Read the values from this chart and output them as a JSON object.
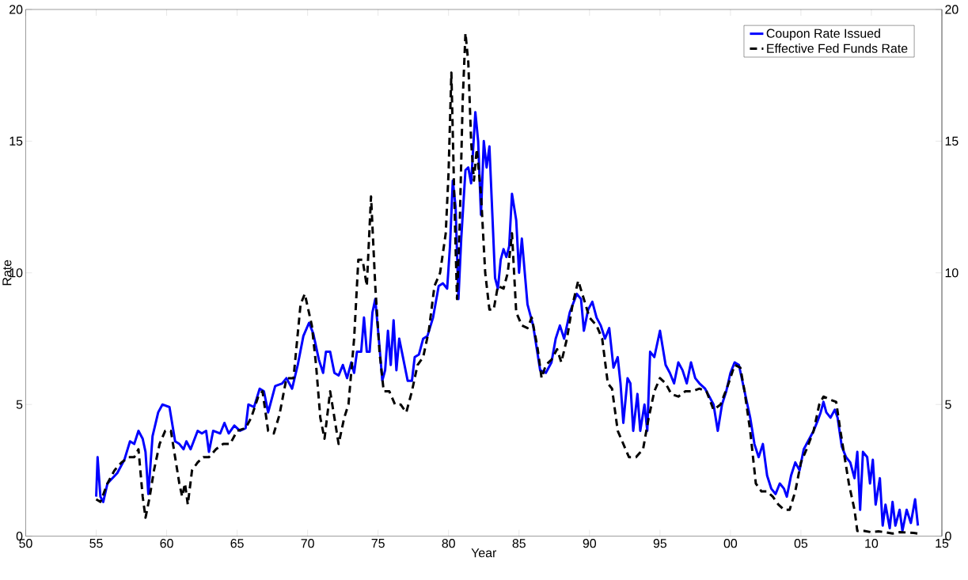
{
  "chart_data": {
    "type": "line",
    "xlabel": "Year",
    "ylabel": "Rate",
    "xlim": [
      1950,
      2015
    ],
    "ylim": [
      0,
      20
    ],
    "y2lim": [
      0,
      20
    ],
    "xticks": [
      {
        "value": 1950,
        "label": "50"
      },
      {
        "value": 1955,
        "label": "55"
      },
      {
        "value": 1960,
        "label": "60"
      },
      {
        "value": 1965,
        "label": "65"
      },
      {
        "value": 1970,
        "label": "70"
      },
      {
        "value": 1975,
        "label": "75"
      },
      {
        "value": 1980,
        "label": "80"
      },
      {
        "value": 1985,
        "label": "85"
      },
      {
        "value": 1990,
        "label": "90"
      },
      {
        "value": 1995,
        "label": "95"
      },
      {
        "value": 2000,
        "label": "00"
      },
      {
        "value": 2005,
        "label": "05"
      },
      {
        "value": 2010,
        "label": "10"
      },
      {
        "value": 2015,
        "label": "15"
      }
    ],
    "yticks": [
      0,
      5,
      10,
      15,
      20
    ],
    "y2ticks": [
      0,
      5,
      10,
      15,
      20
    ],
    "legend": "top right",
    "grid": false,
    "series": [
      {
        "name": "Coupon Rate Issued",
        "color": "#0000ff",
        "line_style": "solid",
        "x": [
          1955.0,
          1955.1,
          1955.3,
          1955.5,
          1955.8,
          1956.5,
          1957.0,
          1957.4,
          1957.7,
          1958.0,
          1958.3,
          1958.5,
          1958.7,
          1959.0,
          1959.4,
          1959.7,
          1960.2,
          1960.6,
          1960.9,
          1961.2,
          1961.4,
          1961.7,
          1962.2,
          1962.5,
          1962.8,
          1963.0,
          1963.3,
          1963.8,
          1964.1,
          1964.4,
          1964.8,
          1965.2,
          1965.6,
          1965.8,
          1966.2,
          1966.6,
          1966.9,
          1967.2,
          1967.7,
          1968.2,
          1968.5,
          1968.9,
          1969.3,
          1969.7,
          1970.1,
          1970.4,
          1970.8,
          1971.1,
          1971.3,
          1971.6,
          1971.9,
          1972.2,
          1972.5,
          1972.8,
          1973.1,
          1973.3,
          1973.5,
          1973.8,
          1974.0,
          1974.2,
          1974.4,
          1974.6,
          1974.8,
          1975.1,
          1975.3,
          1975.5,
          1975.7,
          1975.9,
          1976.1,
          1976.3,
          1976.5,
          1976.8,
          1977.1,
          1977.4,
          1977.6,
          1977.9,
          1978.2,
          1978.5,
          1978.9,
          1979.3,
          1979.6,
          1979.9,
          1980.1,
          1980.3,
          1980.5,
          1980.7,
          1980.9,
          1981.2,
          1981.4,
          1981.6,
          1981.9,
          1982.1,
          1982.3,
          1982.5,
          1982.7,
          1982.9,
          1983.1,
          1983.3,
          1983.5,
          1983.7,
          1983.9,
          1984.1,
          1984.3,
          1984.5,
          1984.8,
          1985.0,
          1985.2,
          1985.6,
          1986.0,
          1986.5,
          1986.9,
          1987.3,
          1987.6,
          1987.9,
          1988.2,
          1988.6,
          1989.1,
          1989.4,
          1989.6,
          1989.9,
          1990.2,
          1990.5,
          1990.8,
          1991.1,
          1991.4,
          1991.7,
          1992.0,
          1992.2,
          1992.4,
          1992.7,
          1992.9,
          1993.1,
          1993.4,
          1993.6,
          1993.9,
          1994.1,
          1994.3,
          1994.6,
          1995.0,
          1995.4,
          1995.7,
          1996.0,
          1996.3,
          1996.6,
          1996.9,
          1997.2,
          1997.5,
          1997.8,
          1998.2,
          1998.5,
          1998.8,
          1999.1,
          1999.4,
          1999.7,
          2000.0,
          2000.3,
          2000.6,
          2001.0,
          2001.4,
          2001.7,
          2002.0,
          2002.3,
          2002.6,
          2002.9,
          2003.2,
          2003.5,
          2003.8,
          2004.0,
          2004.3,
          2004.6,
          2004.9,
          2005.2,
          2005.5,
          2005.9,
          2006.2,
          2006.4,
          2006.6,
          2006.8,
          2007.1,
          2007.4,
          2007.6,
          2007.9,
          2008.2,
          2008.5,
          2008.8,
          2009.0,
          2009.2,
          2009.4,
          2009.7,
          2009.9,
          2010.1,
          2010.3,
          2010.6,
          2010.8,
          2011.0,
          2011.3,
          2011.5,
          2011.7,
          2012.0,
          2012.2,
          2012.5,
          2012.8,
          2013.1,
          2013.3
        ],
        "values": [
          1.5,
          3.0,
          1.5,
          1.3,
          2.0,
          2.4,
          2.9,
          3.6,
          3.5,
          4.0,
          3.7,
          3.2,
          1.6,
          3.8,
          4.7,
          5.0,
          4.9,
          3.6,
          3.5,
          3.3,
          3.6,
          3.3,
          4.0,
          3.9,
          4.0,
          3.2,
          4.0,
          3.9,
          4.3,
          3.9,
          4.2,
          4.0,
          4.1,
          5.0,
          4.9,
          5.6,
          5.5,
          4.7,
          5.7,
          5.8,
          6.0,
          5.6,
          6.5,
          7.6,
          8.1,
          7.7,
          6.7,
          6.2,
          7.0,
          7.0,
          6.2,
          6.1,
          6.5,
          6.0,
          6.6,
          6.2,
          7.0,
          7.0,
          8.3,
          7.0,
          7.0,
          8.5,
          9.0,
          7.2,
          5.9,
          6.3,
          7.8,
          6.5,
          8.2,
          6.3,
          7.5,
          6.7,
          5.9,
          5.9,
          6.8,
          6.9,
          7.5,
          7.6,
          8.3,
          9.5,
          9.6,
          9.4,
          11.0,
          13.5,
          12.5,
          9.0,
          11.3,
          13.9,
          14.0,
          13.4,
          16.1,
          15.0,
          12.2,
          15.0,
          14.0,
          14.8,
          12.3,
          9.8,
          9.4,
          10.5,
          10.9,
          10.6,
          11.0,
          13.0,
          12.0,
          10.0,
          11.3,
          8.8,
          8.0,
          6.3,
          6.2,
          6.6,
          7.5,
          8.0,
          7.5,
          8.5,
          9.2,
          9.0,
          7.8,
          8.6,
          8.9,
          8.3,
          8.0,
          7.5,
          7.9,
          6.4,
          6.8,
          5.8,
          4.3,
          6.0,
          5.8,
          4.0,
          5.4,
          4.0,
          5.0,
          4.0,
          7.0,
          6.8,
          7.8,
          6.5,
          6.2,
          5.8,
          6.6,
          6.3,
          5.8,
          6.6,
          6.0,
          5.8,
          5.6,
          5.3,
          5.0,
          4.0,
          5.0,
          5.5,
          6.2,
          6.6,
          6.5,
          5.5,
          4.5,
          3.5,
          3.0,
          3.5,
          2.3,
          1.8,
          1.6,
          2.0,
          1.8,
          1.5,
          2.3,
          2.8,
          2.5,
          3.3,
          3.6,
          4.0,
          4.4,
          4.7,
          5.1,
          4.7,
          4.5,
          4.8,
          4.5,
          3.4,
          3.0,
          2.8,
          2.2,
          3.2,
          1.0,
          3.2,
          3.0,
          2.0,
          2.9,
          1.2,
          2.2,
          0.4,
          1.2,
          0.3,
          1.3,
          0.4,
          1.0,
          0.2,
          1.0,
          0.5,
          1.4,
          0.4
        ]
      },
      {
        "name": "Effective Fed Funds Rate",
        "color": "#000000",
        "line_style": "dashed",
        "x": [
          1955.0,
          1955.3,
          1955.8,
          1956.3,
          1956.8,
          1957.3,
          1957.7,
          1958.0,
          1958.3,
          1958.5,
          1958.8,
          1959.1,
          1959.5,
          1959.9,
          1960.3,
          1960.6,
          1960.9,
          1961.1,
          1961.3,
          1961.5,
          1961.8,
          1962.2,
          1962.6,
          1963.0,
          1963.5,
          1964.0,
          1964.5,
          1965.0,
          1965.6,
          1966.0,
          1966.5,
          1966.8,
          1967.2,
          1967.6,
          1968.0,
          1968.5,
          1969.0,
          1969.5,
          1969.8,
          1970.3,
          1970.6,
          1970.9,
          1971.2,
          1971.6,
          1971.9,
          1972.2,
          1972.6,
          1972.9,
          1973.3,
          1973.6,
          1973.9,
          1974.2,
          1974.5,
          1974.8,
          1975.1,
          1975.4,
          1975.8,
          1976.2,
          1976.6,
          1977.0,
          1977.4,
          1977.8,
          1978.2,
          1978.6,
          1979.0,
          1979.4,
          1979.8,
          1980.0,
          1980.2,
          1980.4,
          1980.6,
          1980.8,
          1981.0,
          1981.2,
          1981.4,
          1981.6,
          1981.8,
          1982.0,
          1982.3,
          1982.6,
          1982.9,
          1983.2,
          1983.5,
          1983.9,
          1984.2,
          1984.5,
          1984.8,
          1985.2,
          1985.6,
          1985.9,
          1986.3,
          1986.6,
          1986.9,
          1987.3,
          1987.7,
          1988.0,
          1988.4,
          1988.8,
          1989.2,
          1989.6,
          1990.0,
          1990.5,
          1990.9,
          1991.3,
          1991.6,
          1992.0,
          1992.4,
          1992.8,
          1993.3,
          1993.8,
          1994.2,
          1994.6,
          1995.0,
          1995.4,
          1995.8,
          1996.3,
          1996.8,
          1997.3,
          1997.8,
          1998.3,
          1998.8,
          1999.3,
          1999.8,
          2000.3,
          2000.7,
          2001.0,
          2001.4,
          2001.8,
          2002.2,
          2002.6,
          2003.0,
          2003.4,
          2003.8,
          2004.2,
          2004.6,
          2005.0,
          2005.4,
          2005.9,
          2006.3,
          2006.6,
          2007.0,
          2007.5,
          2007.8,
          2008.1,
          2008.4,
          2008.8,
          2009.0,
          2009.5,
          2010.0,
          2010.5,
          2011.0,
          2011.5,
          2012.0,
          2012.5,
          2013.0,
          2013.3
        ],
        "values": [
          1.4,
          1.3,
          2.0,
          2.5,
          2.8,
          3.0,
          3.0,
          3.3,
          1.5,
          0.7,
          1.5,
          2.5,
          3.5,
          4.0,
          4.0,
          3.0,
          2.0,
          1.5,
          2.0,
          1.2,
          2.5,
          2.8,
          3.0,
          3.0,
          3.3,
          3.5,
          3.5,
          4.0,
          4.1,
          4.5,
          5.3,
          5.5,
          4.0,
          3.9,
          4.6,
          6.0,
          6.0,
          8.8,
          9.2,
          8.0,
          6.5,
          4.5,
          3.7,
          5.5,
          4.5,
          3.5,
          4.5,
          5.0,
          7.5,
          10.5,
          10.5,
          9.5,
          12.9,
          9.5,
          7.0,
          5.5,
          5.5,
          5.0,
          5.0,
          4.7,
          5.5,
          6.5,
          6.8,
          7.8,
          9.5,
          10.0,
          11.5,
          13.8,
          17.6,
          13.0,
          9.0,
          12.0,
          16.5,
          19.1,
          18.0,
          15.0,
          13.5,
          14.7,
          13.0,
          10.0,
          8.6,
          8.6,
          9.5,
          9.4,
          10.0,
          11.5,
          8.5,
          8.0,
          7.9,
          8.3,
          7.2,
          6.0,
          6.5,
          6.7,
          7.1,
          6.6,
          7.5,
          8.8,
          9.7,
          9.0,
          8.3,
          8.0,
          7.5,
          5.8,
          5.6,
          4.0,
          3.5,
          3.0,
          3.0,
          3.3,
          4.5,
          5.5,
          6.0,
          5.8,
          5.4,
          5.3,
          5.5,
          5.5,
          5.6,
          5.5,
          4.8,
          5.0,
          5.7,
          6.5,
          6.4,
          5.5,
          4.0,
          2.0,
          1.7,
          1.7,
          1.5,
          1.2,
          1.0,
          1.0,
          1.7,
          2.8,
          3.3,
          4.0,
          5.0,
          5.3,
          5.2,
          5.1,
          4.0,
          3.0,
          2.0,
          1.0,
          0.2,
          0.2,
          0.15,
          0.18,
          0.15,
          0.1,
          0.15,
          0.14,
          0.12,
          0.1
        ]
      }
    ]
  }
}
